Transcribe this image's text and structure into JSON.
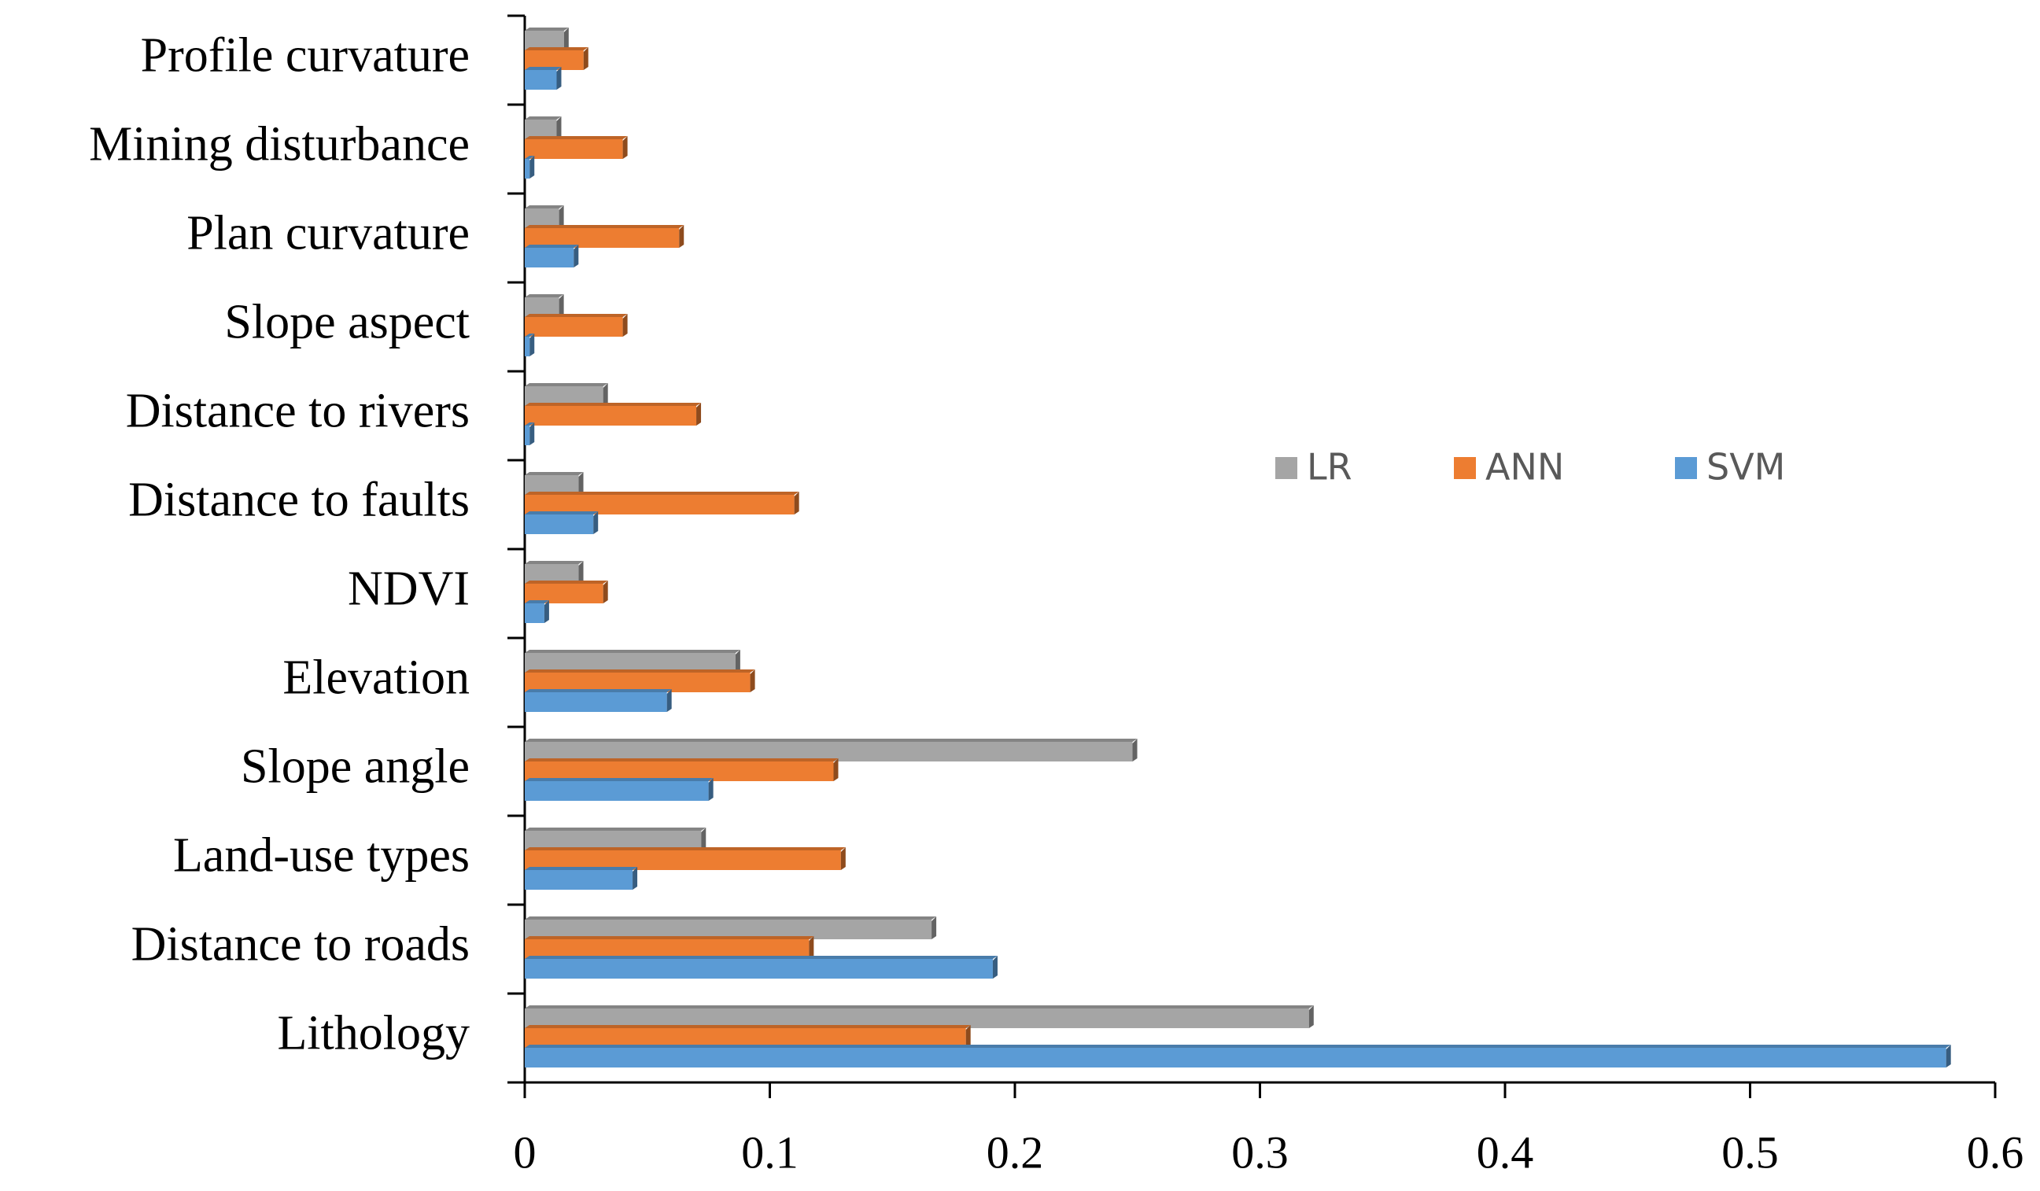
{
  "chart_data": {
    "type": "bar",
    "orientation": "horizontal",
    "categories": [
      "Profile curvature",
      "Mining disturbance",
      "Plan curvature",
      "Slope aspect",
      "Distance to rivers",
      "Distance to faults",
      "NDVI",
      "Elevation",
      "Slope angle",
      "Land-use types",
      "Distance to roads",
      "Lithology"
    ],
    "series": [
      {
        "name": "LR",
        "color": "#a5a5a5",
        "values": [
          0.016,
          0.013,
          0.014,
          0.014,
          0.032,
          0.022,
          0.022,
          0.086,
          0.248,
          0.072,
          0.166,
          0.32
        ]
      },
      {
        "name": "ANN",
        "color": "#ed7d31",
        "values": [
          0.024,
          0.04,
          0.063,
          0.04,
          0.07,
          0.11,
          0.032,
          0.092,
          0.126,
          0.129,
          0.116,
          0.18
        ]
      },
      {
        "name": "SVM",
        "color": "#5b9bd5",
        "values": [
          0.013,
          0.002,
          0.02,
          0.002,
          0.002,
          0.028,
          0.008,
          0.058,
          0.075,
          0.044,
          0.191,
          0.58
        ]
      }
    ],
    "xlim": [
      0,
      0.6
    ],
    "xticks": [
      0,
      0.1,
      0.2,
      0.3,
      0.4,
      0.5,
      0.6
    ],
    "legend": "right"
  }
}
